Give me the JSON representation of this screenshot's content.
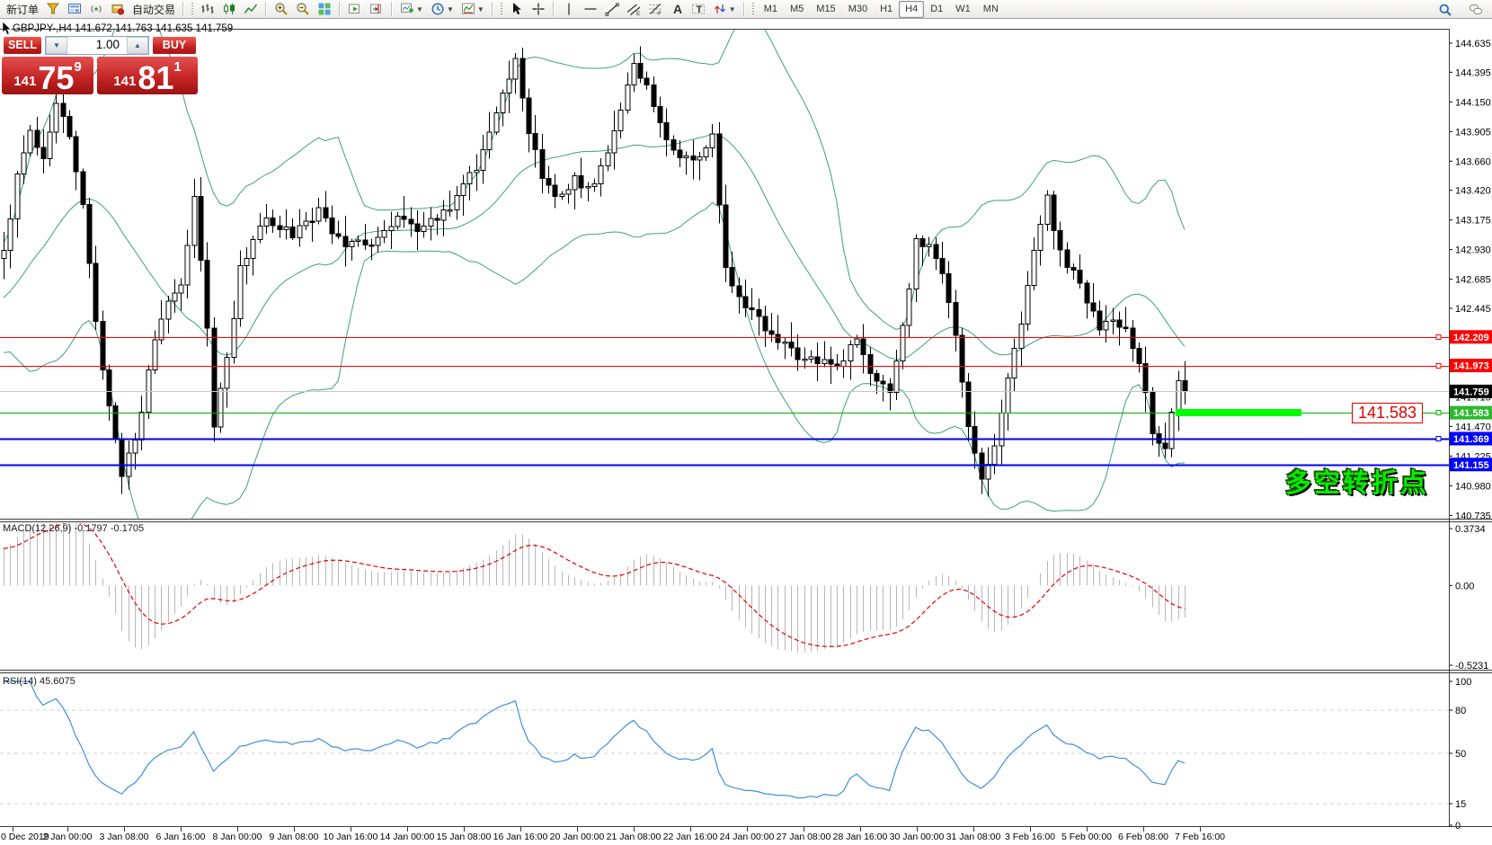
{
  "toolbar": {
    "groups": [
      {
        "grip": false,
        "items": [
          {
            "name": "new-order-button",
            "label": "新订单"
          },
          {
            "name": "styler-button",
            "icon": "funnel"
          },
          {
            "name": "charts-window-button",
            "icon": "window"
          },
          {
            "name": "signals-button",
            "icon": "signal"
          },
          {
            "name": "market-button",
            "icon": "market"
          },
          {
            "name": "autotrading-button",
            "label": "自动交易"
          }
        ]
      },
      {
        "grip": true,
        "items": [
          {
            "name": "bar-chart-button",
            "icon": "bars"
          },
          {
            "name": "candlestick-chart-button",
            "icon": "candles"
          },
          {
            "name": "line-chart-button",
            "icon": "linechart"
          }
        ]
      },
      {
        "grip": false,
        "items": [
          {
            "name": "zoom-in-button",
            "icon": "zoomin"
          },
          {
            "name": "zoom-out-button",
            "icon": "zoomout"
          },
          {
            "name": "tile-windows-button",
            "icon": "tiles"
          }
        ]
      },
      {
        "grip": false,
        "items": [
          {
            "name": "auto-scroll-button",
            "icon": "autoscroll"
          },
          {
            "name": "chart-shift-button",
            "icon": "chartshift"
          }
        ]
      },
      {
        "grip": false,
        "items": [
          {
            "name": "new-chart-button",
            "icon": "newchart",
            "caret": true
          },
          {
            "name": "profiles-button",
            "icon": "clock",
            "caret": true
          },
          {
            "name": "indicators-button",
            "icon": "indicator",
            "caret": true
          }
        ]
      },
      {
        "grip": true,
        "items": [
          {
            "name": "cursor-button",
            "icon": "cursor"
          },
          {
            "name": "crosshair-button",
            "icon": "crosshair"
          }
        ]
      },
      {
        "grip": false,
        "items": [
          {
            "name": "vertical-line-button",
            "icon": "vline"
          },
          {
            "name": "horizontal-line-button",
            "icon": "hline"
          },
          {
            "name": "trendline-button",
            "icon": "trend"
          },
          {
            "name": "equidistant-channel-button",
            "icon": "channel"
          },
          {
            "name": "fibonacci-button",
            "icon": "fibo"
          },
          {
            "name": "text-button",
            "icon": "textA"
          },
          {
            "name": "text-label-button",
            "icon": "labelT"
          },
          {
            "name": "arrows-button",
            "icon": "arrows",
            "caret": true
          }
        ]
      }
    ],
    "timeframes": [
      "M1",
      "M5",
      "M15",
      "M30",
      "H1",
      "H4",
      "D1",
      "W1",
      "MN"
    ],
    "active_timeframe": "H4",
    "right_icons": [
      {
        "name": "search-button",
        "icon": "search"
      },
      {
        "name": "chat-button",
        "icon": "chat"
      }
    ]
  },
  "chart_header": {
    "symbol_period": "GBPJPY-,H4",
    "ohlc": "141.672 141.763 141.635 141.759"
  },
  "trade_panel": {
    "sell_label": "SELL",
    "buy_label": "BUY",
    "volume": "1.00",
    "spin_down": "▼",
    "spin_up": "▲",
    "sell_price": {
      "small": "141",
      "big": "75",
      "sup": "9"
    },
    "buy_price": {
      "small": "141",
      "big": "81",
      "sup": "1"
    }
  },
  "indicators_text": {
    "macd": {
      "name": "MACD(12,26,9)",
      "value": "-0.1797",
      "signal": "-0.1705"
    },
    "rsi": {
      "name": "RSI(14)",
      "value": "45.6075"
    }
  },
  "annotations": {
    "price_box_text": "141.583",
    "turning_point_text": "多空转折点"
  },
  "chart_data": {
    "type": "candlestick",
    "symbol": "GBPJPY-",
    "period": "H4",
    "price_axis_ticks": [
      144.635,
      144.395,
      144.15,
      143.905,
      143.66,
      143.42,
      143.175,
      142.93,
      142.685,
      142.445,
      141.715,
      141.47,
      141.225,
      140.98,
      140.735
    ],
    "hlines": [
      {
        "price": 142.209,
        "color": "#ff0000",
        "width": 1,
        "label": "142.209",
        "label_bg": "#ff0000",
        "marker": true
      },
      {
        "price": 141.973,
        "color": "#ff0000",
        "width": 1,
        "label": "141.973",
        "label_bg": "#ff0000",
        "marker": true
      },
      {
        "price": 141.759,
        "color": "#c8c8c8",
        "width": 1,
        "label": "141.759",
        "label_bg": "#000000",
        "marker": false
      },
      {
        "price": 141.583,
        "color": "#00b300",
        "width": 1,
        "label": "141.583",
        "label_bg": "#2db82d",
        "marker": true
      },
      {
        "price": 141.369,
        "color": "#0000dd",
        "width": 2,
        "label": "141.369",
        "label_bg": "#0000ff",
        "marker": true
      },
      {
        "price": 141.155,
        "color": "#0000ff",
        "width": 2,
        "label": "141.155",
        "label_bg": "#0000ff",
        "marker": false
      }
    ],
    "support_bar": {
      "price": 141.583,
      "color": "#00ff00"
    },
    "bollinger": {
      "period": 20,
      "deviation": 2,
      "color": "#3aa374"
    },
    "macd": {
      "fast": 12,
      "slow": 26,
      "signal": 9,
      "scale_max": 0.3734,
      "scale_mid": 0.0,
      "scale_min": -0.5231,
      "axis_labels": [
        "0.3734",
        "0.00",
        "-0.5231"
      ],
      "bar_color": "#b8b8b8",
      "signal_color": "#e30000"
    },
    "rsi": {
      "period": 14,
      "axis_labels": [
        "100",
        "80",
        "50",
        "15",
        "0"
      ],
      "levels": [
        80,
        50,
        15
      ],
      "line_color": "#3f8fde"
    },
    "time_labels": [
      "0 Dec 2019",
      "2 Jan 00:00",
      "3 Jan 08:00",
      "6 Jan 16:00",
      "8 Jan 00:00",
      "9 Jan 08:00",
      "10 Jan 16:00",
      "14 Jan 00:00",
      "15 Jan 08:00",
      "16 Jan 16:00",
      "20 Jan 00:00",
      "21 Jan 08:00",
      "22 Jan 16:00",
      "24 Jan 00:00",
      "27 Jan 08:00",
      "28 Jan 16:00",
      "30 Jan 00:00",
      "31 Jan 08:00",
      "3 Feb 16:00",
      "5 Feb 00:00",
      "6 Feb 08:00",
      "7 Feb 16:00"
    ],
    "close_path": [
      [
        0,
        142.9
      ],
      [
        2,
        143.55
      ],
      [
        4,
        143.9
      ],
      [
        6,
        143.7
      ],
      [
        8,
        144.15
      ],
      [
        10,
        143.85
      ],
      [
        12,
        143.3
      ],
      [
        14,
        142.35
      ],
      [
        16,
        141.6
      ],
      [
        18,
        141.1
      ],
      [
        20,
        141.35
      ],
      [
        22,
        141.9
      ],
      [
        24,
        142.4
      ],
      [
        27,
        142.6
      ],
      [
        29,
        143.35
      ],
      [
        31,
        142.25
      ],
      [
        32,
        141.5
      ],
      [
        34,
        142.0
      ],
      [
        36,
        142.8
      ],
      [
        40,
        143.2
      ],
      [
        44,
        143.05
      ],
      [
        48,
        143.25
      ],
      [
        52,
        142.95
      ],
      [
        56,
        143.0
      ],
      [
        60,
        143.2
      ],
      [
        64,
        143.1
      ],
      [
        68,
        143.3
      ],
      [
        72,
        143.6
      ],
      [
        75,
        144.1
      ],
      [
        78,
        144.5
      ],
      [
        80,
        143.9
      ],
      [
        82,
        143.55
      ],
      [
        84,
        143.35
      ],
      [
        87,
        143.5
      ],
      [
        90,
        143.45
      ],
      [
        93,
        143.9
      ],
      [
        96,
        144.45
      ],
      [
        98,
        144.25
      ],
      [
        100,
        143.95
      ],
      [
        103,
        143.65
      ],
      [
        106,
        143.7
      ],
      [
        108,
        143.85
      ],
      [
        110,
        142.75
      ],
      [
        112,
        142.5
      ],
      [
        115,
        142.35
      ],
      [
        118,
        142.2
      ],
      [
        121,
        142.05
      ],
      [
        124,
        142.0
      ],
      [
        127,
        141.95
      ],
      [
        130,
        142.2
      ],
      [
        133,
        141.8
      ],
      [
        135,
        141.75
      ],
      [
        137,
        142.3
      ],
      [
        139,
        143.0
      ],
      [
        141,
        142.95
      ],
      [
        143,
        142.7
      ],
      [
        145,
        142.2
      ],
      [
        147,
        141.5
      ],
      [
        149,
        141.05
      ],
      [
        151,
        141.3
      ],
      [
        153,
        141.9
      ],
      [
        155,
        142.3
      ],
      [
        157,
        142.9
      ],
      [
        159,
        143.35
      ],
      [
        161,
        142.9
      ],
      [
        163,
        142.75
      ],
      [
        165,
        142.5
      ],
      [
        167,
        142.3
      ],
      [
        169,
        142.35
      ],
      [
        171,
        142.25
      ],
      [
        173,
        142.0
      ],
      [
        175,
        141.45
      ],
      [
        177,
        141.3
      ],
      [
        179,
        141.85
      ],
      [
        180,
        141.759
      ]
    ],
    "history_warmup": {
      "bars": 40,
      "start_price": 141.35
    },
    "candle_count": 181,
    "last_close": 141.759
  }
}
